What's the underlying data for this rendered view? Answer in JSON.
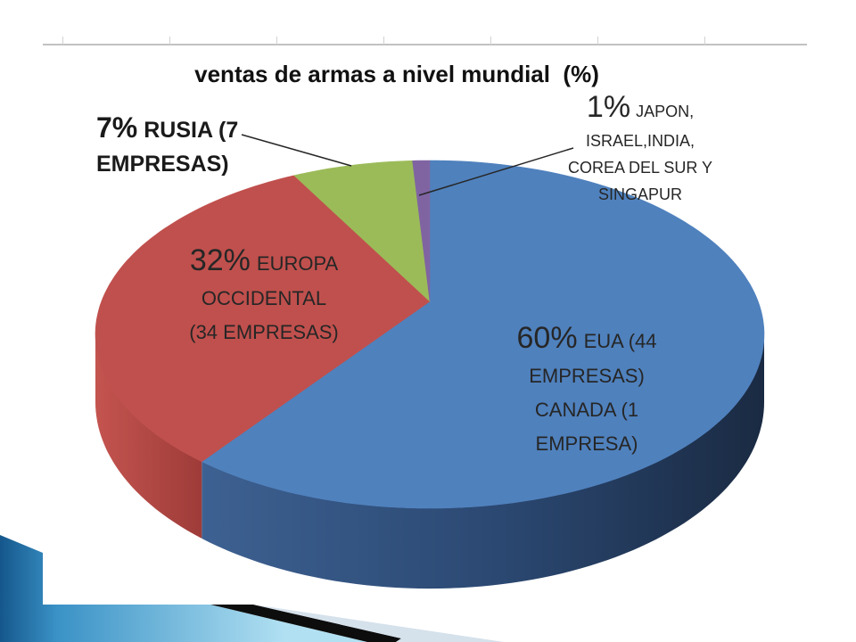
{
  "chart_data": {
    "type": "pie",
    "is_3d": true,
    "title": "ventas de armas a nivel mundial  (%)",
    "slices": [
      {
        "value": 60,
        "value_label": "60%",
        "label_lines": [
          "EUA (44",
          "EMPRESAS)",
          "CANADA (1",
          "EMPRESA)"
        ],
        "color": "#4F81BD"
      },
      {
        "value": 32,
        "value_label": "32%",
        "label_lines": [
          "EUROPA",
          "OCCIDENTAL",
          "(34 EMPRESAS)"
        ],
        "color": "#C0504D"
      },
      {
        "value": 7,
        "value_label": "7%",
        "label_lines": [
          "RUSIA (7",
          "EMPRESAS)"
        ],
        "color": "#9BBB59"
      },
      {
        "value": 1,
        "value_label": "1%",
        "label_lines": [
          "JAPON,",
          "ISRAEL,INDIA,",
          "COREA DEL SUR Y",
          "SINGAPUR"
        ],
        "color": "#8064A2"
      }
    ]
  }
}
